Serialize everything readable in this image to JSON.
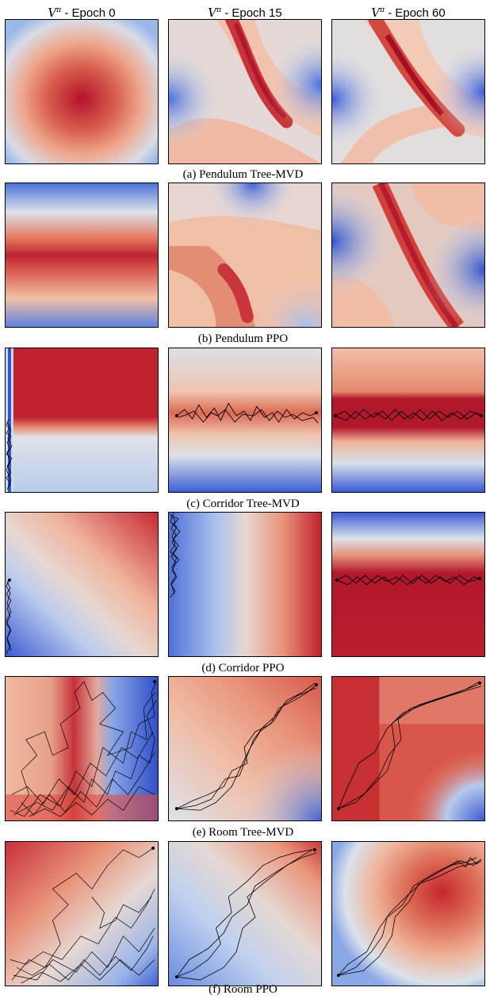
{
  "columns": [
    {
      "symbol": "V",
      "superscript": "π",
      "label": "- Epoch 0"
    },
    {
      "symbol": "V",
      "superscript": "π",
      "label": "- Epoch 15"
    },
    {
      "symbol": "V",
      "superscript": "π",
      "label": "- Epoch 60"
    }
  ],
  "rows": [
    {
      "caption": "(a) Pendulum Tree-MVD"
    },
    {
      "caption": "(b) Pendulum PPO"
    },
    {
      "caption": "(c) Corridor Tree-MVD"
    },
    {
      "caption": "(d) Corridor PPO"
    },
    {
      "caption": "(e) Room Tree-MVD"
    },
    {
      "caption": "(f) Room PPO"
    }
  ],
  "colors": {
    "high": "#b2182b",
    "mid": "#dbe2ea",
    "low": "#3b4cc0",
    "trajectory": "#000000"
  }
}
